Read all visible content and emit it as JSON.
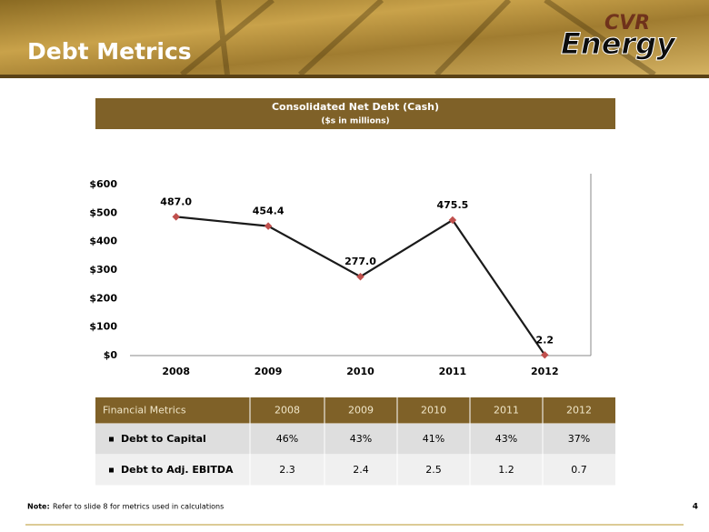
{
  "header": {
    "title": "Debt Metrics",
    "logo_top": "CVR",
    "logo_bottom": "Energy"
  },
  "chart_data": {
    "type": "line",
    "title": "Consolidated Net Debt (Cash)",
    "subtitle": "($s in millions)",
    "categories": [
      "2008",
      "2009",
      "2010",
      "2011",
      "2012"
    ],
    "series": [
      {
        "color": "#1a1a1a",
        "marker_color": "#c0504d",
        "values": [
          487.0,
          454.4,
          277.0,
          475.5,
          2.2
        ],
        "value_labels": [
          "487.0",
          "454.4",
          "277.0",
          "475.5",
          "2.2"
        ]
      }
    ],
    "ylim": [
      0,
      600
    ],
    "yticks": [
      {
        "value": 0,
        "label": "$0"
      },
      {
        "value": 100,
        "label": "$100"
      },
      {
        "value": 200,
        "label": "$200"
      },
      {
        "value": 300,
        "label": "$300"
      },
      {
        "value": 400,
        "label": "$400"
      },
      {
        "value": 500,
        "label": "$500"
      },
      {
        "value": 600,
        "label": "$600"
      }
    ],
    "grid": false
  },
  "table": {
    "header": [
      "Financial Metrics",
      "2008",
      "2009",
      "2010",
      "2011",
      "2012"
    ],
    "rows": [
      [
        "Debt to Capital",
        "46%",
        "43%",
        "41%",
        "43%",
        "37%"
      ],
      [
        "Debt to Adj. EBITDA",
        "2.3",
        "2.4",
        "2.5",
        "1.2",
        "0.7"
      ]
    ]
  },
  "note": {
    "label": "Note:",
    "text": "Refer to slide 8 for metrics used in calculations"
  },
  "page_number": "4"
}
